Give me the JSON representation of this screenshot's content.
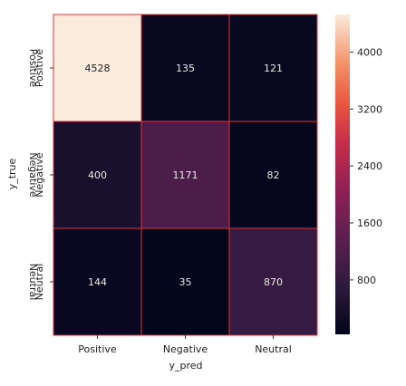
{
  "chart_data": {
    "type": "heatmap",
    "title": "",
    "xlabel": "y_pred",
    "ylabel": "y_true",
    "x_categories": [
      "Positive",
      "Negative",
      "Neutral"
    ],
    "y_categories": [
      "Positive",
      "Negative",
      "Neutral"
    ],
    "y_tick_labels_mirrored": [
      "Positive",
      "Negative",
      "Neutral"
    ],
    "values": [
      [
        4528,
        135,
        121
      ],
      [
        400,
        1171,
        82
      ],
      [
        144,
        35,
        870
      ]
    ],
    "value_labels": [
      [
        "4528",
        "135",
        "121"
      ],
      [
        "400",
        "1171",
        "82"
      ],
      [
        "144",
        "35",
        "870"
      ]
    ],
    "colorbar": {
      "range": [
        35,
        4528
      ],
      "ticks": [
        4000,
        3200,
        2400,
        1600,
        800
      ],
      "tick_labels": [
        "4000",
        "3200",
        "2400",
        "1600",
        "800"
      ],
      "colormap": "rocket"
    },
    "cell_border_color": "#e0303a",
    "legend": "colorbar-right"
  }
}
